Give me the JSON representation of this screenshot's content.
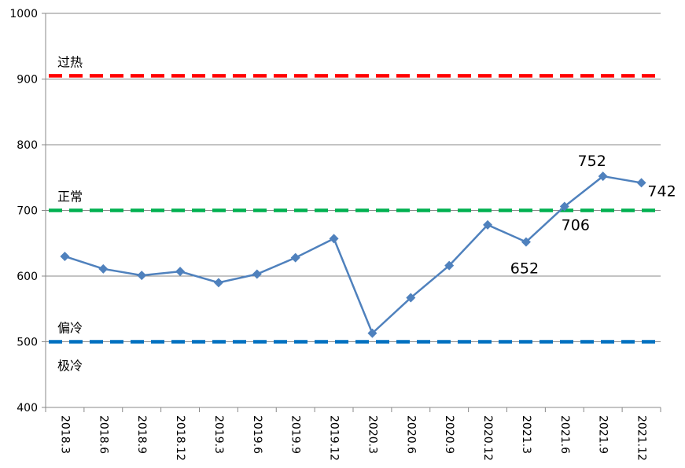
{
  "chart_data": {
    "type": "line",
    "categories": [
      "2018.3",
      "2018.6",
      "2018.9",
      "2018.12",
      "2019.3",
      "2019.6",
      "2019.9",
      "2019.12",
      "2020.3",
      "2020.6",
      "2020.9",
      "2020.12",
      "2021.3",
      "2021.6",
      "2021.9",
      "2021.12"
    ],
    "series": [
      {
        "values": [
          630,
          611,
          601,
          607,
          590,
          603,
          628,
          657,
          513,
          567,
          616,
          678,
          652,
          706,
          752,
          742
        ],
        "color": "#4f81bd",
        "marker": "diamond"
      }
    ],
    "ylim": [
      400,
      1000
    ],
    "yticks": [
      "400",
      "500",
      "600",
      "700",
      "800",
      "900",
      "1000"
    ],
    "grid": true,
    "title": "",
    "xlabel": "",
    "ylabel": "",
    "reference_lines": [
      {
        "value": 905,
        "color": "#ff0000",
        "style": "dashed"
      },
      {
        "value": 700,
        "color": "#00b050",
        "style": "dashed"
      },
      {
        "value": 500,
        "color": "#0070c0",
        "style": "dashed"
      }
    ],
    "zone_labels": [
      {
        "text": "过热",
        "level": 905,
        "position": "above"
      },
      {
        "text": "正常",
        "level": 700,
        "position": "above"
      },
      {
        "text": "偏冷",
        "level": 500,
        "position": "above"
      },
      {
        "text": "极冷",
        "level": 500,
        "position": "below"
      }
    ],
    "data_labels": [
      {
        "index": 12,
        "text": "652"
      },
      {
        "index": 13,
        "text": "706"
      },
      {
        "index": 14,
        "text": "752"
      },
      {
        "index": 15,
        "text": "742"
      }
    ]
  }
}
